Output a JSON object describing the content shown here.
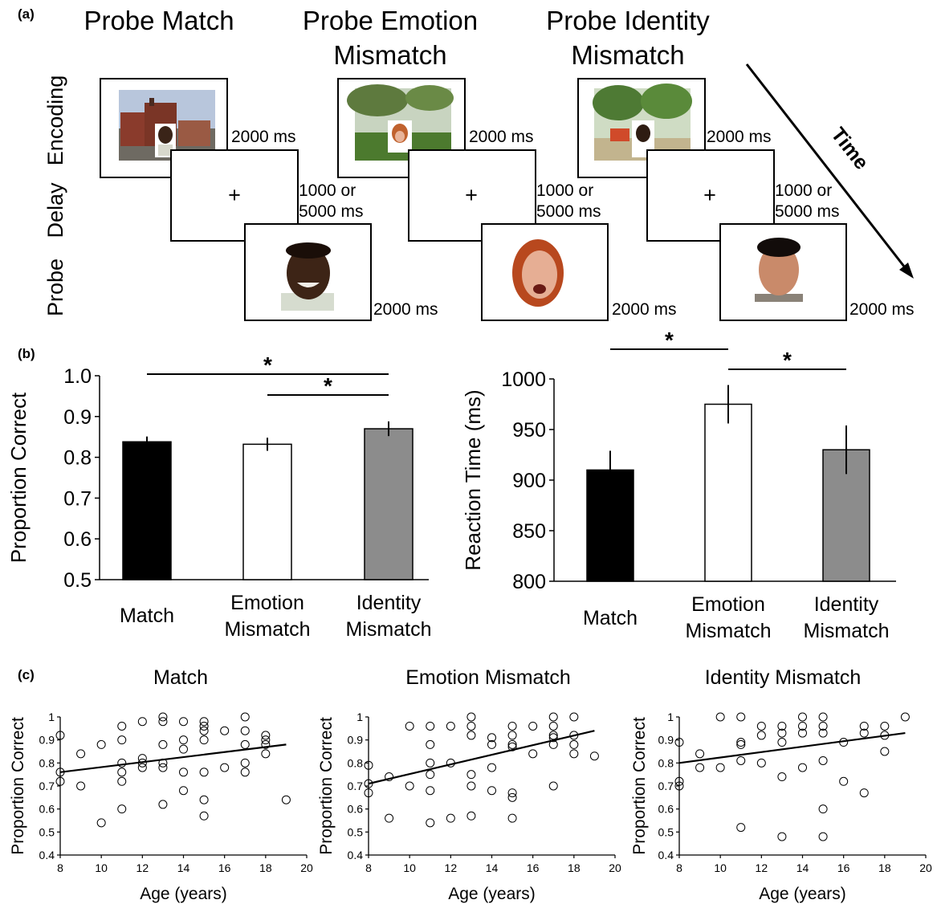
{
  "panel_labels": {
    "a": "(a)",
    "b": "(b)",
    "c": "(c)"
  },
  "paradigm": {
    "columns": [
      {
        "title_lines": [
          "Probe Match"
        ]
      },
      {
        "title_lines": [
          "Probe Emotion",
          "Mismatch"
        ]
      },
      {
        "title_lines": [
          "Probe Identity",
          "Mismatch"
        ]
      }
    ],
    "row_labels": [
      "Encoding",
      "Delay",
      "Probe"
    ],
    "fixation": "+",
    "encoding_duration": "2000 ms",
    "delay_duration_lines": [
      "1000 or",
      "5000 ms"
    ],
    "probe_duration": "2000 ms",
    "time_label": "Time"
  },
  "chart_data": [
    {
      "type": "bar",
      "categories": [
        [
          "Match"
        ],
        [
          "Emotion",
          "Mismatch"
        ],
        [
          "Identity",
          "Mismatch"
        ]
      ],
      "values": [
        0.838,
        0.832,
        0.87
      ],
      "errors": [
        0.013,
        0.016,
        0.018
      ],
      "bar_colors": [
        "#000000",
        "#ffffff",
        "#8c8c8c"
      ],
      "ylabel": "Proportion Correct",
      "ylim": [
        0.5,
        1.0
      ],
      "yticks": [
        "0.5",
        "0.6",
        "0.7",
        "0.8",
        "0.9",
        "1.0"
      ],
      "significance": [
        {
          "from": 0,
          "to": 2,
          "label": "*"
        },
        {
          "from": 1,
          "to": 2,
          "label": "*"
        }
      ]
    },
    {
      "type": "bar",
      "categories": [
        [
          "Match"
        ],
        [
          "Emotion",
          "Mismatch"
        ],
        [
          "Identity",
          "Mismatch"
        ]
      ],
      "values": [
        910,
        975,
        930
      ],
      "errors": [
        19,
        19,
        24
      ],
      "bar_colors": [
        "#000000",
        "#ffffff",
        "#8c8c8c"
      ],
      "ylabel": "Reaction Time (ms)",
      "ylim": [
        800,
        1000
      ],
      "yticks": [
        "800",
        "850",
        "900",
        "950",
        "1000"
      ],
      "significance": [
        {
          "from": 0,
          "to": 1,
          "label": "*"
        },
        {
          "from": 1,
          "to": 2,
          "label": "*"
        }
      ]
    },
    {
      "type": "scatter",
      "title": "Match",
      "xlabel": "Age (years)",
      "ylabel": "Proportion Correct",
      "xlim": [
        8,
        20
      ],
      "ylim": [
        0.4,
        1
      ],
      "xticks": [
        "8",
        "10",
        "12",
        "14",
        "16",
        "18",
        "20"
      ],
      "yticks": [
        "0.4",
        "0.5",
        "0.6",
        "0.7",
        "0.8",
        "0.9",
        "1"
      ],
      "trend": [
        [
          8,
          0.76
        ],
        [
          19,
          0.88
        ]
      ],
      "points": [
        [
          8,
          0.92
        ],
        [
          8,
          0.76
        ],
        [
          8,
          0.72
        ],
        [
          9,
          0.84
        ],
        [
          9,
          0.7
        ],
        [
          10,
          0.88
        ],
        [
          10,
          0.54
        ],
        [
          11,
          0.96
        ],
        [
          11,
          0.9
        ],
        [
          11,
          0.8
        ],
        [
          11,
          0.76
        ],
        [
          11,
          0.72
        ],
        [
          11,
          0.6
        ],
        [
          12,
          0.98
        ],
        [
          12,
          0.82
        ],
        [
          12,
          0.8
        ],
        [
          12,
          0.78
        ],
        [
          13,
          1.0
        ],
        [
          13,
          0.98
        ],
        [
          13,
          0.88
        ],
        [
          13,
          0.8
        ],
        [
          13,
          0.78
        ],
        [
          13,
          0.62
        ],
        [
          14,
          0.98
        ],
        [
          14,
          0.9
        ],
        [
          14,
          0.86
        ],
        [
          14,
          0.76
        ],
        [
          14,
          0.68
        ],
        [
          15,
          0.98
        ],
        [
          15,
          0.96
        ],
        [
          15,
          0.94
        ],
        [
          15,
          0.9
        ],
        [
          15,
          0.76
        ],
        [
          15,
          0.64
        ],
        [
          15,
          0.57
        ],
        [
          16,
          0.94
        ],
        [
          16,
          0.78
        ],
        [
          17,
          1.0
        ],
        [
          17,
          0.94
        ],
        [
          17,
          0.88
        ],
        [
          17,
          0.8
        ],
        [
          17,
          0.76
        ],
        [
          18,
          0.92
        ],
        [
          18,
          0.9
        ],
        [
          18,
          0.88
        ],
        [
          18,
          0.84
        ],
        [
          19,
          0.64
        ]
      ]
    },
    {
      "type": "scatter",
      "title": "Emotion Mismatch",
      "xlabel": "Age (years)",
      "ylabel": "Proportion Correct",
      "xlim": [
        8,
        20
      ],
      "ylim": [
        0.4,
        1
      ],
      "xticks": [
        "8",
        "10",
        "12",
        "14",
        "16",
        "18",
        "20"
      ],
      "yticks": [
        "0.4",
        "0.5",
        "0.6",
        "0.7",
        "0.8",
        "0.9",
        "1"
      ],
      "trend": [
        [
          8,
          0.71
        ],
        [
          19,
          0.94
        ]
      ],
      "points": [
        [
          8,
          0.79
        ],
        [
          8,
          0.71
        ],
        [
          8,
          0.67
        ],
        [
          9,
          0.74
        ],
        [
          9,
          0.56
        ],
        [
          10,
          0.96
        ],
        [
          10,
          0.7
        ],
        [
          11,
          0.96
        ],
        [
          11,
          0.88
        ],
        [
          11,
          0.8
        ],
        [
          11,
          0.75
        ],
        [
          11,
          0.68
        ],
        [
          11,
          0.54
        ],
        [
          12,
          0.96
        ],
        [
          12,
          0.8
        ],
        [
          12,
          0.56
        ],
        [
          13,
          1.0
        ],
        [
          13,
          0.96
        ],
        [
          13,
          0.92
        ],
        [
          13,
          0.75
        ],
        [
          13,
          0.7
        ],
        [
          13,
          0.57
        ],
        [
          14,
          0.91
        ],
        [
          14,
          0.88
        ],
        [
          14,
          0.78
        ],
        [
          14,
          0.68
        ],
        [
          15,
          0.96
        ],
        [
          15,
          0.92
        ],
        [
          15,
          0.88
        ],
        [
          15,
          0.87
        ],
        [
          15,
          0.67
        ],
        [
          15,
          0.65
        ],
        [
          15,
          0.56
        ],
        [
          16,
          0.96
        ],
        [
          16,
          0.84
        ],
        [
          17,
          1.0
        ],
        [
          17,
          0.96
        ],
        [
          17,
          0.92
        ],
        [
          17,
          0.91
        ],
        [
          17,
          0.88
        ],
        [
          17,
          0.7
        ],
        [
          18,
          1.0
        ],
        [
          18,
          0.92
        ],
        [
          18,
          0.88
        ],
        [
          18,
          0.84
        ],
        [
          19,
          0.83
        ]
      ]
    },
    {
      "type": "scatter",
      "title": "Identity Mismatch",
      "xlabel": "Age (years)",
      "ylabel": "Proportion Correct",
      "xlim": [
        8,
        20
      ],
      "ylim": [
        0.4,
        1
      ],
      "xticks": [
        "8",
        "10",
        "12",
        "14",
        "16",
        "18",
        "20"
      ],
      "yticks": [
        "0.4",
        "0.5",
        "0.6",
        "0.7",
        "0.8",
        "0.9",
        "1"
      ],
      "trend": [
        [
          8,
          0.8
        ],
        [
          19,
          0.93
        ]
      ],
      "points": [
        [
          8,
          0.89
        ],
        [
          8,
          0.72
        ],
        [
          8,
          0.7
        ],
        [
          9,
          0.84
        ],
        [
          9,
          0.78
        ],
        [
          10,
          1.0
        ],
        [
          10,
          0.78
        ],
        [
          11,
          1.0
        ],
        [
          11,
          0.89
        ],
        [
          11,
          0.88
        ],
        [
          11,
          0.81
        ],
        [
          11,
          0.52
        ],
        [
          12,
          0.96
        ],
        [
          12,
          0.92
        ],
        [
          12,
          0.8
        ],
        [
          13,
          0.96
        ],
        [
          13,
          0.93
        ],
        [
          13,
          0.89
        ],
        [
          13,
          0.74
        ],
        [
          13,
          0.48
        ],
        [
          14,
          1.0
        ],
        [
          14,
          0.96
        ],
        [
          14,
          0.93
        ],
        [
          14,
          0.78
        ],
        [
          15,
          1.0
        ],
        [
          15,
          0.96
        ],
        [
          15,
          0.93
        ],
        [
          15,
          0.81
        ],
        [
          15,
          0.6
        ],
        [
          15,
          0.48
        ],
        [
          16,
          0.89
        ],
        [
          16,
          0.72
        ],
        [
          17,
          0.96
        ],
        [
          17,
          0.93
        ],
        [
          17,
          0.67
        ],
        [
          18,
          0.96
        ],
        [
          18,
          0.92
        ],
        [
          18,
          0.85
        ],
        [
          19,
          1.0
        ]
      ]
    }
  ]
}
